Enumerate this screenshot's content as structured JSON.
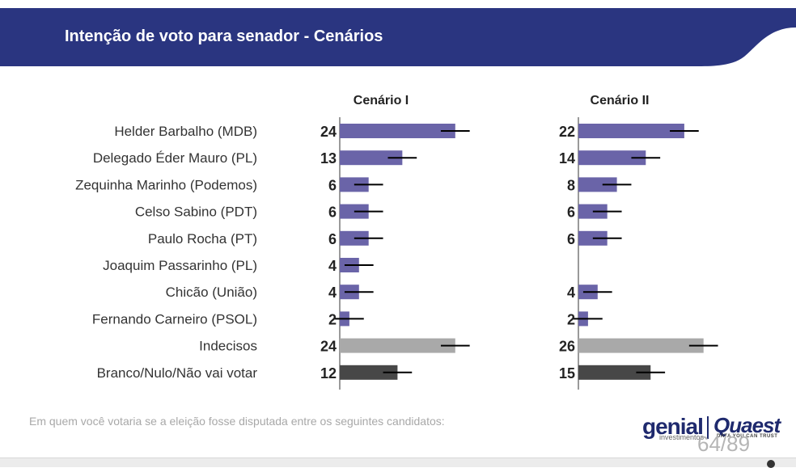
{
  "header": {
    "title": "Intenção de voto para senador - Cenários"
  },
  "colors": {
    "header_bg": "#2a3580",
    "candidate": "#6a64a8",
    "undecided": "#a9a9a9",
    "blank": "#474747",
    "error_bar": "#000000"
  },
  "chart_data": {
    "type": "bar",
    "orientation": "horizontal",
    "categories": [
      "Helder Barbalho (MDB)",
      "Delegado Éder Mauro (PL)",
      "Zequinha Marinho (Podemos)",
      "Celso Sabino (PDT)",
      "Paulo Rocha (PT)",
      "Joaquim Passarinho (PL)",
      "Chicão (União)",
      "Fernando Carneiro (PSOL)",
      "Indecisos",
      "Branco/Nulo/Não vai votar"
    ],
    "category_kind": [
      "candidate",
      "candidate",
      "candidate",
      "candidate",
      "candidate",
      "candidate",
      "candidate",
      "candidate",
      "undecided",
      "blank"
    ],
    "series": [
      {
        "name": "Cenário I",
        "values": [
          24,
          13,
          6,
          6,
          6,
          4,
          4,
          2,
          24,
          12
        ],
        "labels": [
          "24",
          "13",
          "6",
          "6",
          "6",
          "4",
          "4",
          "2",
          "24",
          "12"
        ]
      },
      {
        "name": "Cenário II",
        "values": [
          22,
          14,
          8,
          6,
          6,
          null,
          4,
          2,
          26,
          15
        ],
        "labels": [
          "22",
          "14",
          "8",
          "6",
          "6",
          "",
          "4",
          "2",
          "26",
          "15"
        ]
      }
    ],
    "error_margin": 3,
    "xlim": [
      0,
      30
    ]
  },
  "footnote": "Em quem você votaria se a eleição fosse disputada entre os seguintes candidatos:",
  "branding": {
    "genial": "genial",
    "genial_sub": "investimentos",
    "quaest": "Quaest",
    "quaest_sub": "DATA YOU CAN TRUST"
  },
  "page_indicator": "64/89"
}
